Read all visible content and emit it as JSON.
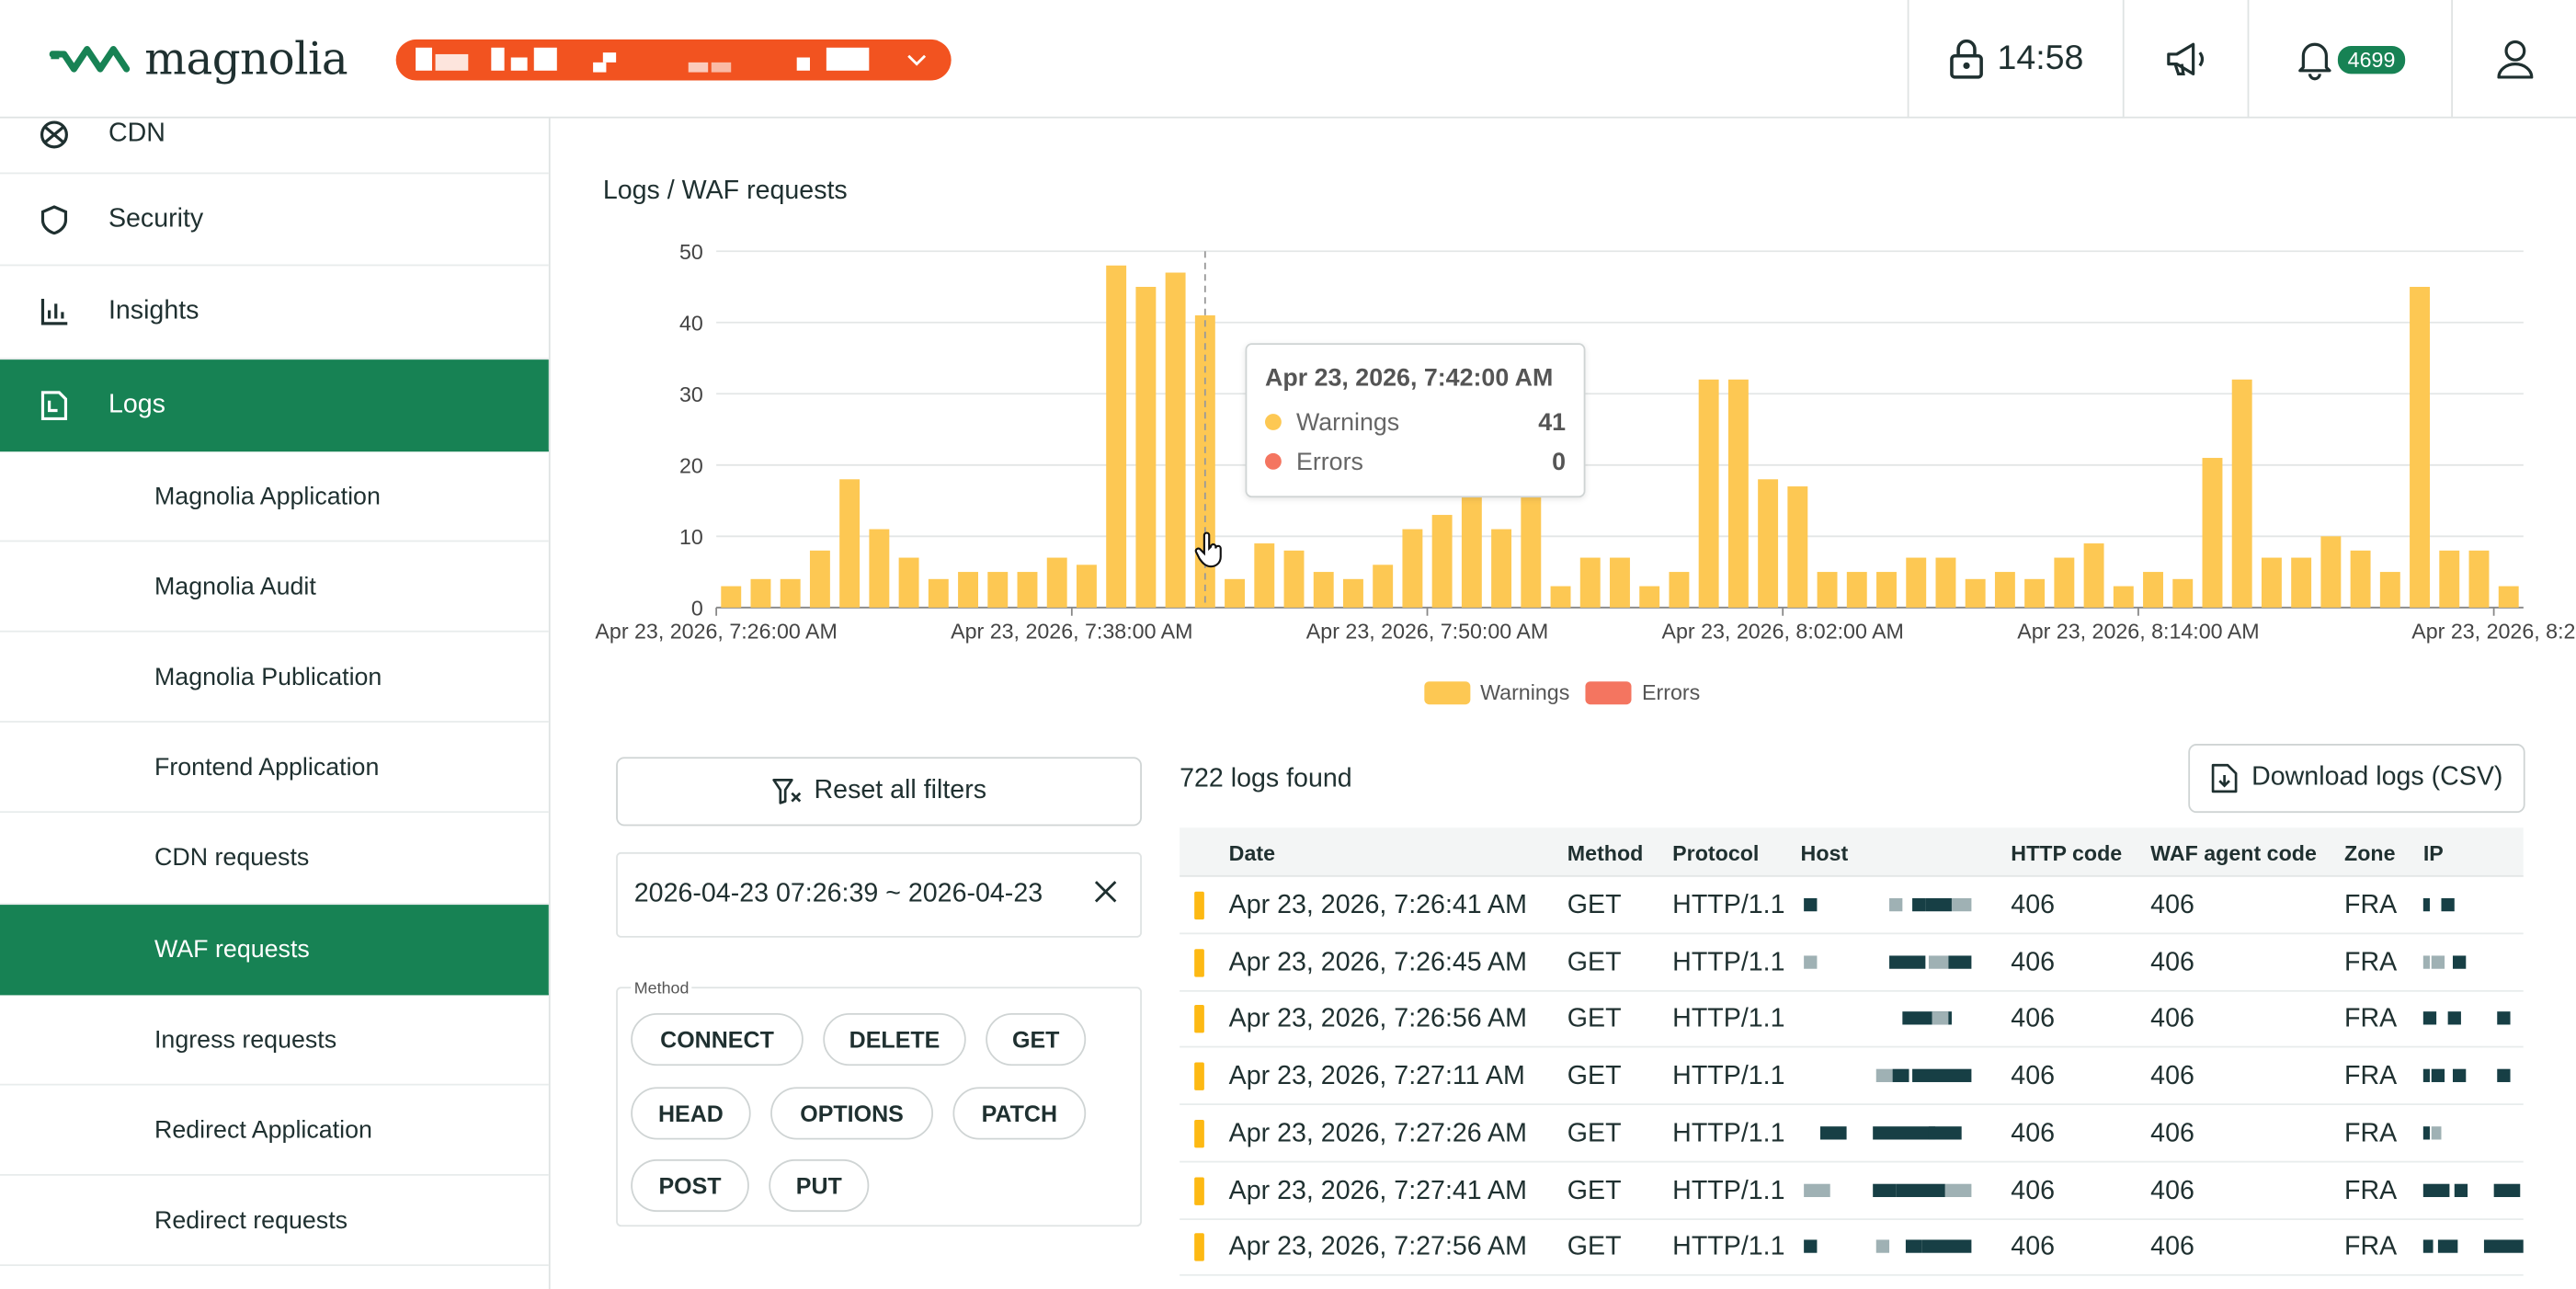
{
  "header": {
    "brand": "magnolia",
    "session_time": "14:58",
    "notification_count": "4699",
    "icons": [
      "lock-icon",
      "megaphone-icon",
      "bell-icon",
      "user-icon"
    ]
  },
  "sidebar": {
    "items": [
      {
        "label": "CDN",
        "icon": "cdn-icon"
      },
      {
        "label": "Security",
        "icon": "shield-icon"
      },
      {
        "label": "Insights",
        "icon": "bar-chart-icon"
      },
      {
        "label": "Logs",
        "icon": "logs-icon"
      }
    ],
    "log_items": [
      {
        "label": "Magnolia Application"
      },
      {
        "label": "Magnolia Audit"
      },
      {
        "label": "Magnolia Publication"
      },
      {
        "label": "Frontend Application"
      },
      {
        "label": "CDN requests"
      },
      {
        "label": "WAF requests"
      },
      {
        "label": "Ingress requests"
      },
      {
        "label": "Redirect Application"
      },
      {
        "label": "Redirect requests"
      }
    ]
  },
  "breadcrumb": "Logs / WAF requests",
  "chart_data": {
    "type": "bar",
    "x_tick_labels": [
      "Apr 23, 2026, 7:26:00 AM",
      "Apr 23, 2026, 7:38:00 AM",
      "Apr 23, 2026, 7:50:00 AM",
      "Apr 23, 2026, 8:02:00 AM",
      "Apr 23, 2026, 8:14:00 AM",
      "Apr 23, 2026, 8:2"
    ],
    "y_ticks": [
      0,
      10,
      20,
      30,
      40,
      50
    ],
    "ylim": [
      0,
      50
    ],
    "series": [
      {
        "name": "Warnings",
        "color": "#fdc853",
        "values": [
          3,
          4,
          4,
          8,
          18,
          11,
          7,
          4,
          5,
          5,
          5,
          7,
          6,
          48,
          45,
          47,
          41,
          4,
          9,
          8,
          5,
          4,
          6,
          11,
          13,
          16,
          11,
          16,
          3,
          7,
          7,
          3,
          5,
          32,
          32,
          18,
          17,
          5,
          5,
          5,
          7,
          7,
          4,
          5,
          4,
          7,
          9,
          3,
          5,
          4,
          21,
          32,
          7,
          7,
          10,
          8,
          5,
          45,
          8,
          8,
          3
        ]
      },
      {
        "name": "Errors",
        "color": "#f47560",
        "values": [
          0,
          0,
          0,
          0,
          0,
          0,
          0,
          0,
          0,
          0,
          0,
          0,
          0,
          0,
          0,
          0,
          0,
          0,
          0,
          0,
          0,
          0,
          0,
          0,
          0,
          0,
          0,
          0,
          0,
          0,
          0,
          0,
          0,
          0,
          0,
          0,
          0,
          0,
          0,
          0,
          0,
          0,
          0,
          0,
          0,
          0,
          0,
          0,
          0,
          0,
          0,
          0,
          0,
          0,
          0,
          0,
          0,
          0,
          0,
          0,
          0
        ]
      }
    ],
    "legend": [
      "Warnings",
      "Errors"
    ],
    "legend_position": "bottom-center",
    "grid": true,
    "tooltip": {
      "title": "Apr 23, 2026, 7:42:00 AM",
      "warnings_label": "Warnings",
      "warnings_value": "41",
      "errors_label": "Errors",
      "errors_value": "0"
    }
  },
  "filters": {
    "reset_label": "Reset all filters",
    "date_range": "2026-04-23 07:26:39 ~ 2026-04-23",
    "method_label": "Method",
    "methods": [
      "CONNECT",
      "DELETE",
      "GET",
      "HEAD",
      "OPTIONS",
      "PATCH",
      "POST",
      "PUT"
    ]
  },
  "results": {
    "count_label": "722 logs found",
    "download_label": "Download logs (CSV)",
    "columns": [
      "Date",
      "Method",
      "Protocol",
      "Host",
      "HTTP code",
      "WAF agent code",
      "Zone",
      "IP"
    ],
    "rows": [
      {
        "date": "Apr 23, 2026, 7:26:41 AM",
        "method": "GET",
        "protocol": "HTTP/1.1",
        "http": "406",
        "waf": "406",
        "zone": "FRA"
      },
      {
        "date": "Apr 23, 2026, 7:26:45 AM",
        "method": "GET",
        "protocol": "HTTP/1.1",
        "http": "406",
        "waf": "406",
        "zone": "FRA"
      },
      {
        "date": "Apr 23, 2026, 7:26:56 AM",
        "method": "GET",
        "protocol": "HTTP/1.1",
        "http": "406",
        "waf": "406",
        "zone": "FRA"
      },
      {
        "date": "Apr 23, 2026, 7:27:11 AM",
        "method": "GET",
        "protocol": "HTTP/1.1",
        "http": "406",
        "waf": "406",
        "zone": "FRA"
      },
      {
        "date": "Apr 23, 2026, 7:27:26 AM",
        "method": "GET",
        "protocol": "HTTP/1.1",
        "http": "406",
        "waf": "406",
        "zone": "FRA"
      },
      {
        "date": "Apr 23, 2026, 7:27:41 AM",
        "method": "GET",
        "protocol": "HTTP/1.1",
        "http": "406",
        "waf": "406",
        "zone": "FRA"
      },
      {
        "date": "Apr 23, 2026, 7:27:56 AM",
        "method": "GET",
        "protocol": "HTTP/1.1",
        "http": "406",
        "waf": "406",
        "zone": "FRA"
      }
    ]
  },
  "colors": {
    "accent": "#178254",
    "env": "#f25320",
    "warning": "#fdc853",
    "error": "#f47560"
  }
}
